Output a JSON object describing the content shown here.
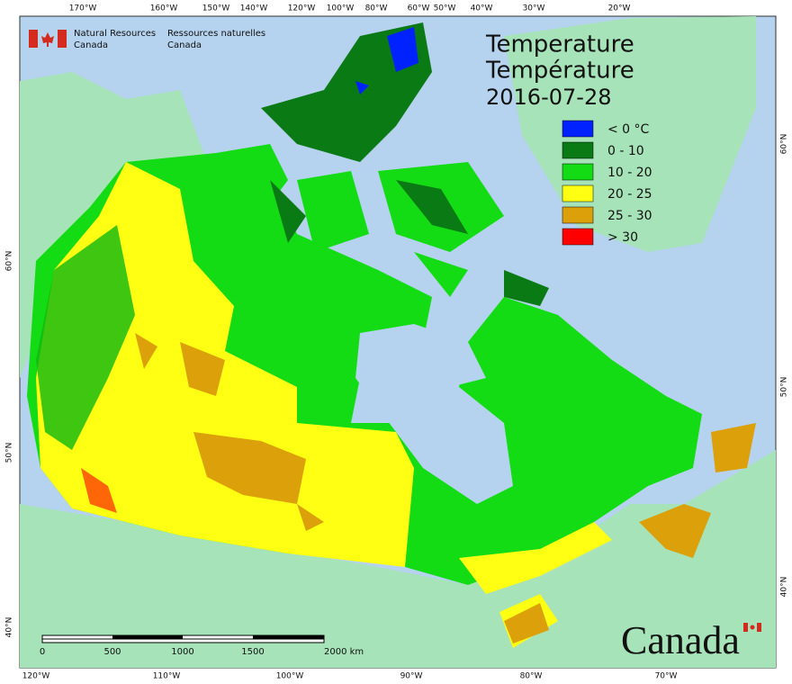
{
  "agency": {
    "en": [
      "Natural Resources",
      "Canada"
    ],
    "fr": [
      "Ressources naturelles",
      "Canada"
    ]
  },
  "title": {
    "en": "Temperature",
    "fr": "Température",
    "date": "2016-07-28"
  },
  "legend": [
    {
      "label": "< 0 °C",
      "color": "#0022ff"
    },
    {
      "label": "0 - 10",
      "color": "#0a7a14"
    },
    {
      "label": "10 - 20",
      "color": "#14dc14"
    },
    {
      "label": "20 - 25",
      "color": "#ffff14"
    },
    {
      "label": "25 - 30",
      "color": "#dca00a"
    },
    {
      "label": "> 30",
      "color": "#ff0000"
    }
  ],
  "graticule": {
    "top": [
      "170°W",
      "160°W",
      "150°W",
      "140°W",
      "120°W",
      "100°W",
      "80°W",
      "60°W",
      "50°W",
      "40°W",
      "30°W",
      "20°W"
    ],
    "bottom": [
      "120°W",
      "110°W",
      "100°W",
      "90°W",
      "80°W",
      "70°W"
    ],
    "left": [
      "60°N",
      "50°N",
      "40°N"
    ],
    "right": [
      "60°N",
      "50°N",
      "40°N"
    ]
  },
  "scale_bar": [
    "0",
    "500",
    "1000",
    "1500",
    "2000 km"
  ],
  "wordmark": "Canada"
}
